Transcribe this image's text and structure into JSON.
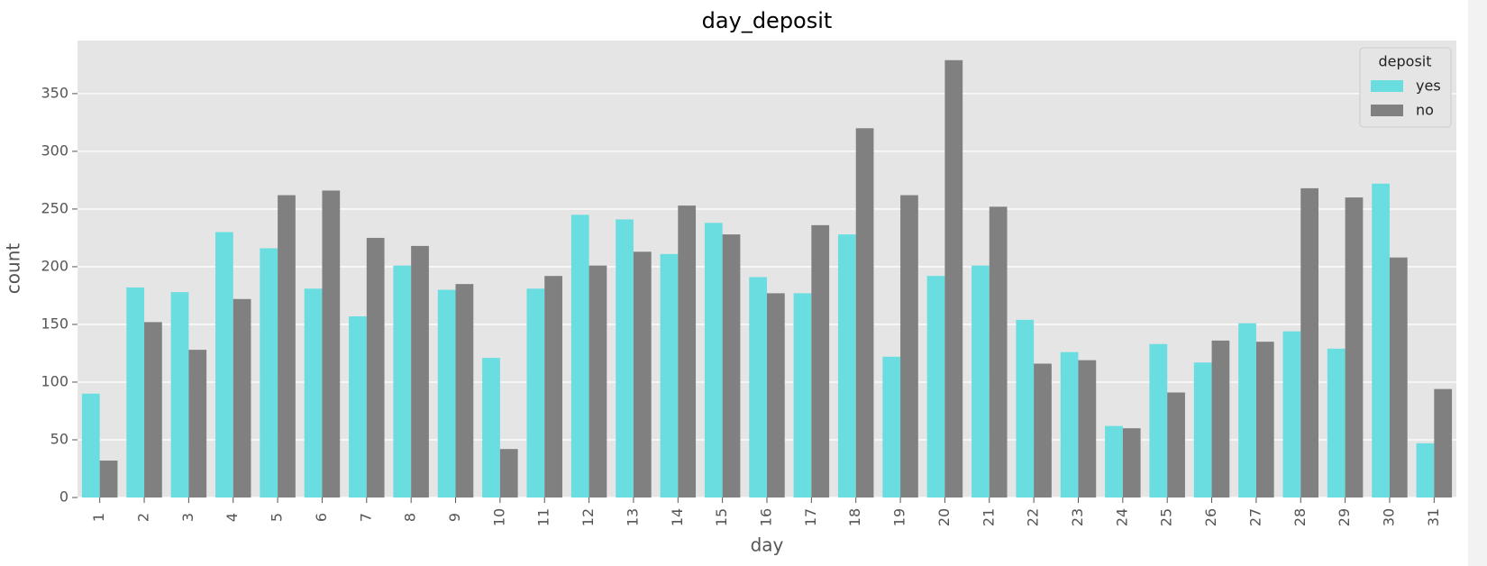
{
  "chart_data": {
    "type": "bar",
    "title": "day_deposit",
    "x_label": "day",
    "y_label": "count",
    "categories": [
      "1",
      "2",
      "3",
      "4",
      "5",
      "6",
      "7",
      "8",
      "9",
      "10",
      "11",
      "12",
      "13",
      "14",
      "15",
      "16",
      "17",
      "18",
      "19",
      "20",
      "21",
      "22",
      "23",
      "24",
      "25",
      "26",
      "27",
      "28",
      "29",
      "30",
      "31"
    ],
    "series": [
      {
        "name": "yes",
        "color": "#6adde0",
        "values": [
          90,
          182,
          178,
          230,
          216,
          181,
          157,
          201,
          180,
          121,
          181,
          245,
          241,
          211,
          238,
          191,
          177,
          228,
          122,
          192,
          201,
          154,
          126,
          62,
          133,
          117,
          151,
          144,
          129,
          272,
          47
        ]
      },
      {
        "name": "no",
        "color": "#808080",
        "values": [
          32,
          152,
          128,
          172,
          262,
          266,
          225,
          218,
          185,
          42,
          192,
          201,
          213,
          253,
          228,
          177,
          236,
          320,
          262,
          379,
          252,
          116,
          119,
          60,
          91,
          136,
          135,
          268,
          260,
          208,
          94
        ]
      }
    ],
    "legend_title": "deposit",
    "legend_position": "upper right",
    "ylim": [
      0,
      396
    ],
    "yticks": [
      0,
      50,
      100,
      150,
      200,
      250,
      300,
      350
    ],
    "grid": true
  }
}
